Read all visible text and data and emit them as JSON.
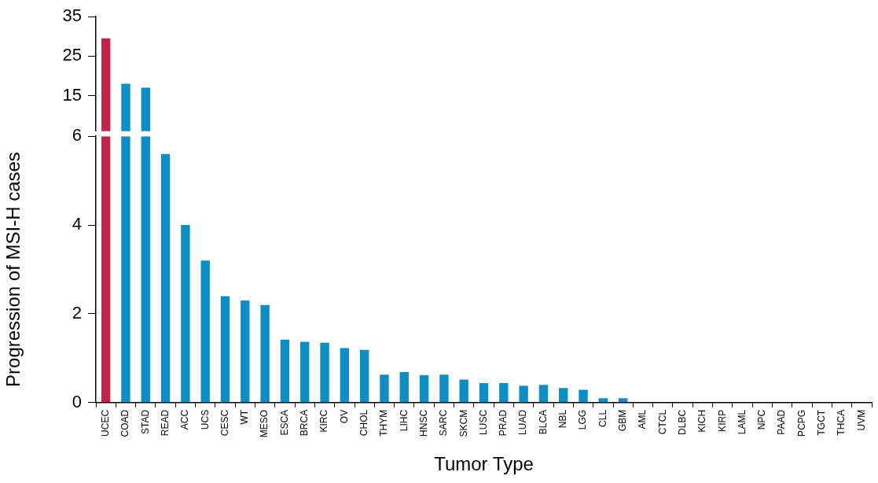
{
  "chart_data": [
    {
      "type": "bar",
      "categories": [
        null,
        null,
        null
      ],
      "values": [
        29.5,
        18,
        17
      ],
      "colors": [
        "#c0234b",
        "#0e8cc4",
        "#0e8cc4"
      ],
      "ylim": [
        6,
        35
      ],
      "yticks": [
        15,
        25,
        35
      ],
      "tick_labels": "y",
      "grid": false,
      "legend": false
    },
    {
      "type": "bar",
      "xlabel": "Tumor Type",
      "ylabel": "Progression of MSI-H cases",
      "categories": [
        "UCEC",
        "COAD",
        "STAD",
        "READ",
        "ACC",
        "UCS",
        "CESC",
        "WT",
        "MESO",
        "ESCA",
        "BRCA",
        "KIRC",
        "OV",
        "CHOL",
        "THYM",
        "LIHC",
        "HNSC",
        "SARC",
        "SKCM",
        "LUSC",
        "PRAD",
        "LUAD",
        "BLCA",
        "NBL",
        "LGG",
        "CLL",
        "GBM",
        "AML",
        "CTCL",
        "DLBC",
        "KICH",
        "KIRP",
        "LAML",
        "NPC",
        "PAAD",
        "PCPG",
        "TGCT",
        "THCA",
        "UVM"
      ],
      "values": [
        6,
        6,
        6,
        5.6,
        4.0,
        3.2,
        2.4,
        2.3,
        2.2,
        1.42,
        1.37,
        1.35,
        1.23,
        1.19,
        0.63,
        0.69,
        0.62,
        0.63,
        0.52,
        0.44,
        0.44,
        0.38,
        0.4,
        0.33,
        0.29,
        0.1,
        0.1,
        0,
        0,
        0,
        0,
        0,
        0,
        0,
        0,
        0,
        0,
        0,
        0
      ],
      "colors": [
        "#c0234b",
        "#0e8cc4",
        "#0e8cc4",
        "#0e8cc4",
        "#0e8cc4",
        "#0e8cc4",
        "#0e8cc4",
        "#0e8cc4",
        "#0e8cc4",
        "#0e8cc4",
        "#0e8cc4",
        "#0e8cc4",
        "#0e8cc4",
        "#0e8cc4",
        "#0e8cc4",
        "#0e8cc4",
        "#0e8cc4",
        "#0e8cc4",
        "#0e8cc4",
        "#0e8cc4",
        "#0e8cc4",
        "#0e8cc4",
        "#0e8cc4",
        "#0e8cc4",
        "#0e8cc4",
        "#0e8cc4",
        "#0e8cc4",
        "#0e8cc4",
        "#0e8cc4",
        "#0e8cc4",
        "#0e8cc4",
        "#0e8cc4",
        "#0e8cc4",
        "#0e8cc4",
        "#0e8cc4",
        "#0e8cc4",
        "#0e8cc4",
        "#0e8cc4",
        "#0e8cc4"
      ],
      "ylim": [
        0,
        6
      ],
      "yticks": [
        0,
        2,
        4,
        6
      ],
      "grid": false,
      "legend": false
    }
  ]
}
